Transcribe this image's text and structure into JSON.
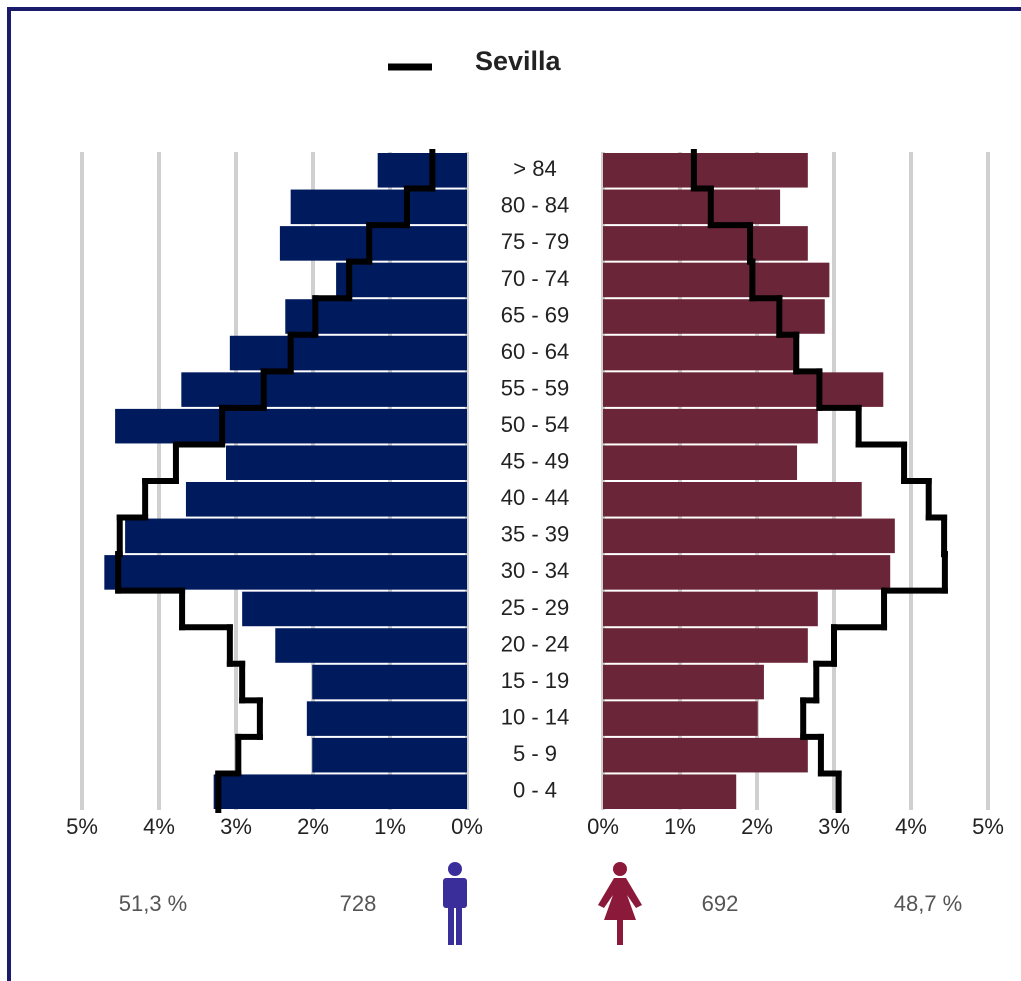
{
  "chart_data": {
    "type": "pyramid",
    "categories": [
      "> 84",
      "80 - 84",
      "75 - 79",
      "70 - 74",
      "65 - 69",
      "60 - 64",
      "55 - 59",
      "50 - 54",
      "45 - 49",
      "40 - 44",
      "35 - 39",
      "30 - 34",
      "25 - 29",
      "20 - 24",
      "15 - 19",
      "10 - 14",
      "5 - 9",
      "0 - 4"
    ],
    "male": {
      "color": "#001a5e",
      "values": [
        1.16,
        2.29,
        2.43,
        1.7,
        2.36,
        3.08,
        3.71,
        4.57,
        3.13,
        3.65,
        4.44,
        4.71,
        2.92,
        2.49,
        2.01,
        2.08,
        2.01,
        3.29
      ]
    },
    "female": {
      "color": "#6b2538",
      "values": [
        2.66,
        2.3,
        2.66,
        2.94,
        2.88,
        2.52,
        3.64,
        2.79,
        2.52,
        3.36,
        3.79,
        3.73,
        2.79,
        2.66,
        2.09,
        2.01,
        2.66,
        1.73
      ]
    },
    "reference": {
      "name": "Sevilla",
      "color": "#000000",
      "male_values": [
        0.45,
        0.78,
        1.27,
        1.53,
        1.97,
        2.29,
        2.64,
        3.18,
        3.78,
        4.18,
        4.51,
        4.53,
        3.7,
        3.08,
        2.92,
        2.69,
        2.97,
        3.23
      ],
      "female_values": [
        1.18,
        1.4,
        1.91,
        1.94,
        2.29,
        2.51,
        2.81,
        3.32,
        3.91,
        4.23,
        4.43,
        4.44,
        3.65,
        3.0,
        2.77,
        2.6,
        2.83,
        3.06
      ]
    },
    "xlim": [
      0,
      5
    ],
    "xticks": [
      {
        "value": 0,
        "label": "0%"
      },
      {
        "value": 1,
        "label": "1%"
      },
      {
        "value": 2,
        "label": "2%"
      },
      {
        "value": 3,
        "label": "3%"
      },
      {
        "value": 4,
        "label": "4%"
      },
      {
        "value": 5,
        "label": "5%"
      }
    ],
    "grid": true,
    "male_share": "51,3 %",
    "male_count": "728",
    "female_count": "692",
    "female_share": "48,7 %"
  }
}
